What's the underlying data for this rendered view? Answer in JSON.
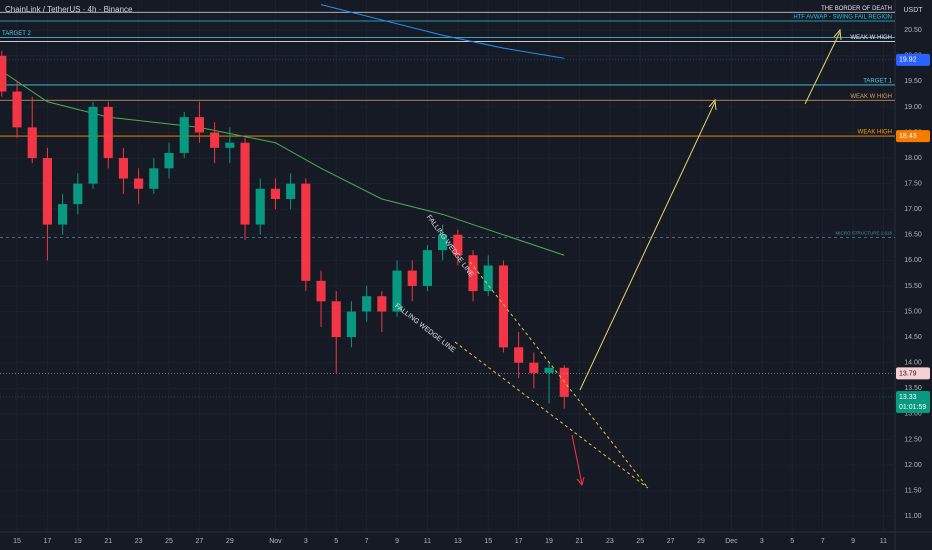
{
  "chart_data": {
    "type": "candlestick",
    "title": "ChainLink / TetherUS · 4h · Binance",
    "currency": "USDT",
    "countdown": "01:01:59",
    "candles": {
      "x": [
        -1,
        0,
        1,
        2,
        3,
        4,
        5,
        6,
        7,
        8,
        9,
        10,
        11,
        12,
        13,
        14,
        15,
        16,
        17,
        18,
        19,
        20,
        21,
        22,
        23,
        24,
        25,
        26,
        27,
        28,
        29,
        30,
        31,
        32,
        33,
        34,
        35,
        36
      ],
      "open": [
        20.0,
        19.3,
        18.6,
        18.0,
        16.7,
        17.1,
        17.5,
        19.0,
        18.0,
        17.6,
        17.4,
        17.8,
        18.1,
        18.8,
        18.5,
        18.2,
        18.3,
        16.7,
        17.4,
        17.2,
        17.5,
        15.6,
        15.2,
        14.5,
        15.0,
        15.3,
        15.0,
        15.8,
        15.5,
        16.2,
        16.5,
        16.1,
        15.4,
        15.9,
        14.3,
        14.0,
        13.8,
        13.9
      ],
      "high": [
        20.1,
        19.5,
        19.2,
        18.2,
        17.3,
        17.7,
        19.1,
        19.1,
        18.2,
        17.8,
        18.0,
        18.3,
        18.9,
        19.1,
        18.7,
        18.6,
        18.4,
        17.6,
        17.6,
        17.7,
        17.6,
        15.8,
        15.4,
        15.2,
        15.5,
        15.4,
        16.0,
        16.0,
        16.3,
        16.7,
        16.6,
        16.2,
        16.1,
        16.0,
        14.6,
        14.2,
        14.0,
        13.95
      ],
      "low": [
        19.2,
        18.4,
        17.9,
        16.0,
        16.5,
        16.9,
        17.4,
        17.8,
        17.3,
        17.1,
        17.3,
        17.6,
        18.0,
        18.3,
        17.9,
        17.9,
        16.4,
        16.5,
        17.0,
        17.0,
        15.4,
        14.7,
        13.8,
        14.3,
        14.8,
        14.6,
        14.9,
        15.2,
        15.4,
        16.0,
        15.9,
        15.2,
        15.3,
        14.2,
        13.7,
        13.5,
        13.2,
        13.1
      ],
      "close": [
        19.3,
        18.6,
        18.0,
        16.7,
        17.1,
        17.5,
        19.0,
        18.0,
        17.6,
        17.4,
        17.8,
        18.1,
        18.8,
        18.5,
        18.2,
        18.3,
        16.7,
        17.4,
        17.2,
        17.5,
        15.6,
        15.2,
        14.5,
        15.0,
        15.3,
        15.0,
        15.8,
        15.5,
        16.2,
        16.5,
        16.1,
        15.4,
        15.9,
        14.3,
        14.0,
        13.8,
        13.9,
        13.33
      ],
      "up_color": "#089981",
      "down_color": "#f23645"
    },
    "series": [
      {
        "color": "#4caf50",
        "x": [
          -1,
          2,
          6,
          12,
          17,
          20,
          24,
          28,
          32,
          36
        ],
        "values": [
          19.7,
          19.1,
          18.8,
          18.6,
          18.3,
          17.8,
          17.2,
          16.9,
          16.5,
          16.1
        ]
      },
      {
        "color": "#2196f3",
        "x": [
          20,
          24,
          28,
          32,
          36
        ],
        "values": [
          21.0,
          20.7,
          20.4,
          20.15,
          19.95
        ]
      }
    ],
    "levels": [
      {
        "label": "THE BORDER OF DEATH",
        "value": 20.85,
        "color": "#e0e3eb",
        "side": "right"
      },
      {
        "label": "HTF AVWAP - SWING FAIL REGION",
        "value": 20.68,
        "color": "#26c6da",
        "side": "right"
      },
      {
        "label": "TARGET 2",
        "value": 20.36,
        "color": "#4dd0e1",
        "side": "left"
      },
      {
        "label": "WEAK W HIGH",
        "value": 20.28,
        "color": "#e0e3eb",
        "side": "right"
      },
      {
        "label": "TARGET 1",
        "value": 19.43,
        "color": "#4dd0e1",
        "side": "right"
      },
      {
        "label": "WEAK W HIGH",
        "value": 19.13,
        "color": "#e0a060",
        "side": "right"
      },
      {
        "label": "WEAK HIGH",
        "value": 18.43,
        "color": "#ff9800",
        "side": "right"
      },
      {
        "label": "MICRO STRUCTURE 1.618",
        "value": 16.45,
        "color": "#4a8a9a",
        "side": "right",
        "dashed": true
      }
    ],
    "price_labels": [
      {
        "value": 19.92,
        "color": "#2962ff"
      },
      {
        "value": 18.43,
        "color": "#f57c00"
      },
      {
        "value": 13.79,
        "color": "#f8d0d4"
      },
      {
        "value": 13.33,
        "color": "#089981"
      }
    ],
    "annotations": [
      "FALLING WEDGE LINE",
      "FALLING WEDGE LINE"
    ],
    "ylim": [
      10.69,
      21.09
    ],
    "yticks": [
      {
        "value": 11,
        "label": "11.00"
      },
      {
        "value": 11.5,
        "label": "11.50"
      },
      {
        "value": 12,
        "label": "12.00"
      },
      {
        "value": 12.5,
        "label": "12.50"
      },
      {
        "value": 13,
        "label": "13.00"
      },
      {
        "value": 13.5,
        "label": "13.50"
      },
      {
        "value": 14,
        "label": "14.00"
      },
      {
        "value": 14.5,
        "label": "14.50"
      },
      {
        "value": 15,
        "label": "15.00"
      },
      {
        "value": 15.5,
        "label": "15.50"
      },
      {
        "value": 16,
        "label": "16.00"
      },
      {
        "value": 16.5,
        "label": "16.50"
      },
      {
        "value": 17,
        "label": "17.00"
      },
      {
        "value": 17.5,
        "label": "17.50"
      },
      {
        "value": 18,
        "label": "18.00"
      },
      {
        "value": 18.5,
        "label": "18.50"
      },
      {
        "value": 19,
        "label": "19.00"
      },
      {
        "value": 19.5,
        "label": "19.50"
      },
      {
        "value": 20,
        "label": "20.00"
      },
      {
        "value": 20.5,
        "label": "20.50"
      }
    ],
    "xlim": [
      -1.12,
      57.76
    ],
    "xticks": [
      {
        "value": 0,
        "label": "15"
      },
      {
        "value": 2,
        "label": "17"
      },
      {
        "value": 4,
        "label": "19"
      },
      {
        "value": 6,
        "label": "21"
      },
      {
        "value": 8,
        "label": "23"
      },
      {
        "value": 10,
        "label": "25"
      },
      {
        "value": 12,
        "label": "27"
      },
      {
        "value": 14,
        "label": "29"
      },
      {
        "value": 17,
        "label": "Nov"
      },
      {
        "value": 19,
        "label": "3"
      },
      {
        "value": 21,
        "label": "5"
      },
      {
        "value": 23,
        "label": "7"
      },
      {
        "value": 25,
        "label": "9"
      },
      {
        "value": 27,
        "label": "11"
      },
      {
        "value": 29,
        "label": "13"
      },
      {
        "value": 31,
        "label": "15"
      },
      {
        "value": 33,
        "label": "17"
      },
      {
        "value": 35,
        "label": "19"
      },
      {
        "value": 37,
        "label": "21"
      },
      {
        "value": 39,
        "label": "23"
      },
      {
        "value": 41,
        "label": "25"
      },
      {
        "value": 43,
        "label": "27"
      },
      {
        "value": 45,
        "label": "29"
      },
      {
        "value": 47,
        "label": "Dec"
      },
      {
        "value": 49,
        "label": "3"
      },
      {
        "value": 51,
        "label": "5"
      },
      {
        "value": 53,
        "label": "7"
      },
      {
        "value": 55,
        "label": "9"
      },
      {
        "value": 57,
        "label": "11"
      }
    ]
  }
}
